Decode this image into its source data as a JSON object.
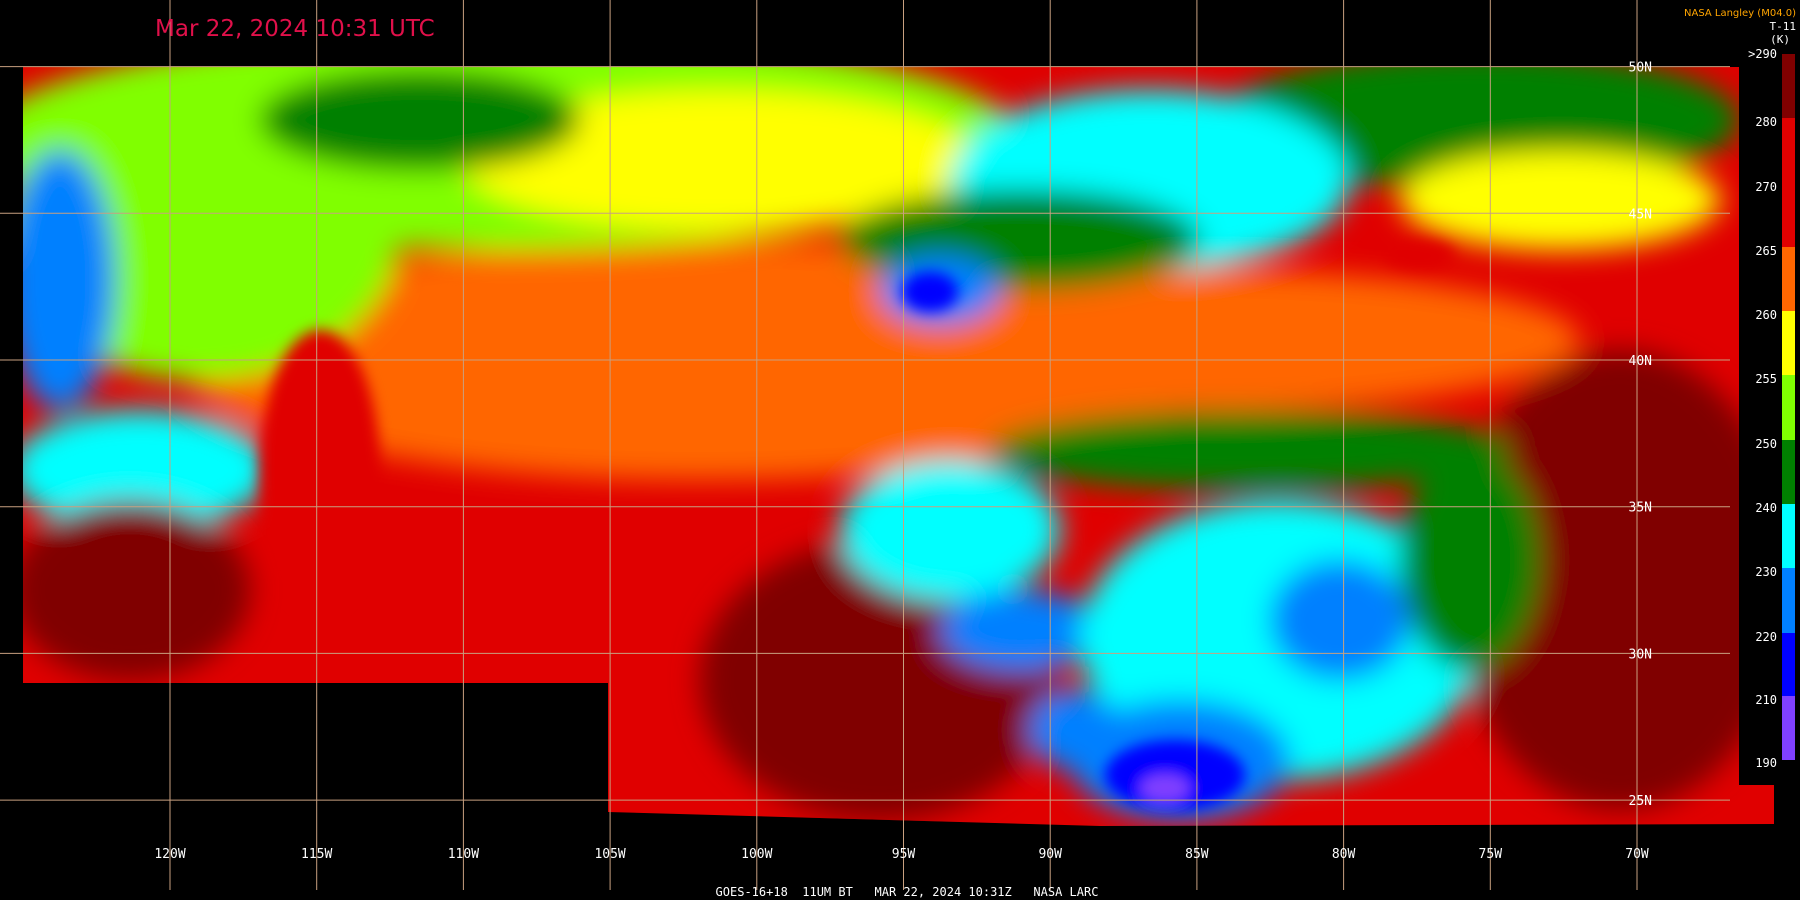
{
  "header": {
    "title": "Mar 22, 2024 10:31 UTC",
    "credit": "NASA Langley (M04.0)",
    "channel": "T-11",
    "units": "(K)"
  },
  "colorbar": {
    "labels": [
      ">290",
      "280",
      "270",
      "265",
      "260",
      "255",
      "250",
      "240",
      "230",
      "220",
      "210",
      "190"
    ]
  },
  "grid": {
    "longitudes": [
      "120W",
      "115W",
      "110W",
      "105W",
      "100W",
      "95W",
      "90W",
      "85W",
      "80W",
      "75W",
      "70W"
    ],
    "latitudes": [
      "50N",
      "45N",
      "40N",
      "35N",
      "30N",
      "25N"
    ]
  },
  "footer": "GOES-16+18  11UM BT   MAR 22, 2024 10:31Z   NASA LARC"
}
